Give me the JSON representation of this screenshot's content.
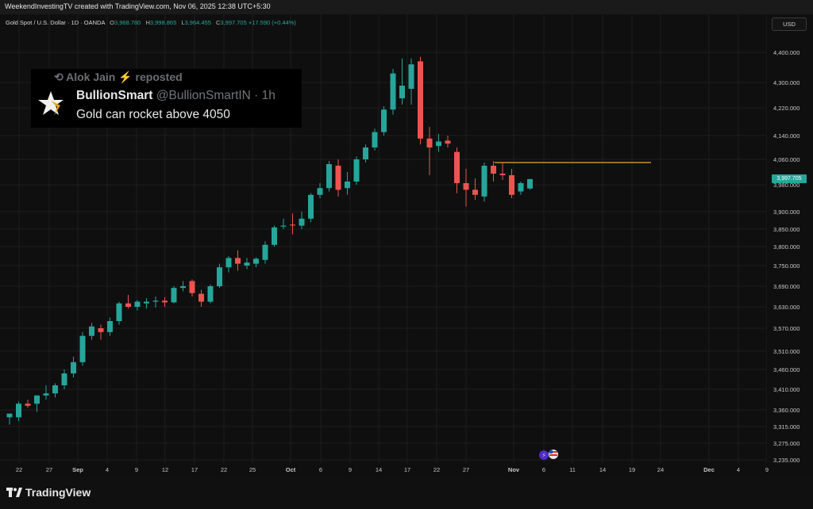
{
  "header": {
    "caption": "WeekendInvestingTV created with TradingView.com, Nov 06, 2025 12:38 UTC+5:30"
  },
  "legend": {
    "symbol": "Gold Spot / U.S. Dollar · 1D · OANDA",
    "o_label": "O",
    "o_value": "3,968.780",
    "h_label": "H",
    "h_value": "3,998.865",
    "l_label": "L",
    "l_value": "3,964.455",
    "c_label": "C",
    "c_value": "3,997.705",
    "change": "+17.590 (+0.44%)"
  },
  "currency_button": "USD",
  "last_price_label": "3,997.705",
  "tweet": {
    "repost_text": "Alok Jain ⚡ reposted",
    "author": "BullionSmart",
    "handle": "@BullionSmartIN · 1h",
    "text": "Gold can rocket above 4050"
  },
  "footer": {
    "brand": "TradingView"
  },
  "colors": {
    "up": "#26a69a",
    "down": "#ef5350",
    "background": "#0f0f0f",
    "level_line": "#f5a623"
  },
  "chart_data": {
    "type": "candlestick",
    "symbol": "XAUUSD",
    "y_ticks": [
      "4,400.000",
      "4,300.000",
      "4,220.000",
      "4,140.000",
      "4,060.000",
      "3,980.000",
      "3,900.000",
      "3,850.000",
      "3,800.000",
      "3,750.000",
      "3,690.000",
      "3,630.000",
      "3,570.000",
      "3,510.000",
      "3,460.000",
      "3,410.000",
      "3,360.000",
      "3,315.000",
      "3,275.000",
      "3,235.000"
    ],
    "x_ticks": [
      "22",
      "27",
      "Sep",
      "4",
      "9",
      "12",
      "17",
      "22",
      "25",
      "Oct",
      "6",
      "9",
      "14",
      "17",
      "22",
      "27",
      "Nov",
      "6",
      "11",
      "14",
      "19",
      "24",
      "Dec",
      "4",
      "9"
    ],
    "horizontal_level": 4050,
    "candles": [
      {
        "o": 3340,
        "h": 3350,
        "l": 3320,
        "c": 3350
      },
      {
        "o": 3340,
        "h": 3380,
        "l": 3330,
        "c": 3375
      },
      {
        "o": 3375,
        "h": 3385,
        "l": 3365,
        "c": 3370
      },
      {
        "o": 3375,
        "h": 3395,
        "l": 3355,
        "c": 3395
      },
      {
        "o": 3395,
        "h": 3420,
        "l": 3385,
        "c": 3400
      },
      {
        "o": 3400,
        "h": 3425,
        "l": 3390,
        "c": 3420
      },
      {
        "o": 3420,
        "h": 3460,
        "l": 3410,
        "c": 3450
      },
      {
        "o": 3450,
        "h": 3495,
        "l": 3440,
        "c": 3480
      },
      {
        "o": 3480,
        "h": 3560,
        "l": 3470,
        "c": 3550
      },
      {
        "o": 3550,
        "h": 3585,
        "l": 3540,
        "c": 3575
      },
      {
        "o": 3570,
        "h": 3580,
        "l": 3540,
        "c": 3560
      },
      {
        "o": 3560,
        "h": 3600,
        "l": 3550,
        "c": 3590
      },
      {
        "o": 3590,
        "h": 3645,
        "l": 3580,
        "c": 3640
      },
      {
        "o": 3640,
        "h": 3665,
        "l": 3625,
        "c": 3630
      },
      {
        "o": 3630,
        "h": 3650,
        "l": 3620,
        "c": 3645
      },
      {
        "o": 3640,
        "h": 3655,
        "l": 3625,
        "c": 3645
      },
      {
        "o": 3645,
        "h": 3660,
        "l": 3628,
        "c": 3648
      },
      {
        "o": 3648,
        "h": 3658,
        "l": 3630,
        "c": 3643
      },
      {
        "o": 3643,
        "h": 3690,
        "l": 3640,
        "c": 3685
      },
      {
        "o": 3685,
        "h": 3705,
        "l": 3675,
        "c": 3690
      },
      {
        "o": 3705,
        "h": 3710,
        "l": 3660,
        "c": 3670
      },
      {
        "o": 3668,
        "h": 3680,
        "l": 3630,
        "c": 3645
      },
      {
        "o": 3645,
        "h": 3695,
        "l": 3640,
        "c": 3690
      },
      {
        "o": 3690,
        "h": 3755,
        "l": 3685,
        "c": 3745
      },
      {
        "o": 3745,
        "h": 3775,
        "l": 3730,
        "c": 3770
      },
      {
        "o": 3770,
        "h": 3790,
        "l": 3735,
        "c": 3755
      },
      {
        "o": 3750,
        "h": 3770,
        "l": 3740,
        "c": 3758
      },
      {
        "o": 3755,
        "h": 3772,
        "l": 3745,
        "c": 3768
      },
      {
        "o": 3765,
        "h": 3815,
        "l": 3755,
        "c": 3805
      },
      {
        "o": 3805,
        "h": 3860,
        "l": 3800,
        "c": 3855
      },
      {
        "o": 3860,
        "h": 3880,
        "l": 3850,
        "c": 3860
      },
      {
        "o": 3863,
        "h": 3895,
        "l": 3835,
        "c": 3862
      },
      {
        "o": 3860,
        "h": 3900,
        "l": 3850,
        "c": 3880
      },
      {
        "o": 3880,
        "h": 3955,
        "l": 3870,
        "c": 3950
      },
      {
        "o": 3950,
        "h": 3985,
        "l": 3940,
        "c": 3970
      },
      {
        "o": 3970,
        "h": 4055,
        "l": 3960,
        "c": 4045
      },
      {
        "o": 4040,
        "h": 4060,
        "l": 3945,
        "c": 3965
      },
      {
        "o": 3970,
        "h": 4020,
        "l": 3950,
        "c": 3990
      },
      {
        "o": 3990,
        "h": 4070,
        "l": 3980,
        "c": 4060
      },
      {
        "o": 4060,
        "h": 4110,
        "l": 4050,
        "c": 4100
      },
      {
        "o": 4100,
        "h": 4160,
        "l": 4090,
        "c": 4150
      },
      {
        "o": 4150,
        "h": 4225,
        "l": 4140,
        "c": 4215
      },
      {
        "o": 4215,
        "h": 4345,
        "l": 4200,
        "c": 4330
      },
      {
        "o": 4250,
        "h": 4380,
        "l": 4230,
        "c": 4290
      },
      {
        "o": 4280,
        "h": 4380,
        "l": 4230,
        "c": 4360
      },
      {
        "o": 4370,
        "h": 4385,
        "l": 4110,
        "c": 4130
      },
      {
        "o": 4130,
        "h": 4165,
        "l": 4010,
        "c": 4100
      },
      {
        "o": 4105,
        "h": 4145,
        "l": 4085,
        "c": 4120
      },
      {
        "o": 4123,
        "h": 4140,
        "l": 4100,
        "c": 4113
      },
      {
        "o": 4085,
        "h": 4100,
        "l": 3955,
        "c": 3985
      },
      {
        "o": 3985,
        "h": 4030,
        "l": 3915,
        "c": 3965
      },
      {
        "o": 3965,
        "h": 4000,
        "l": 3935,
        "c": 3950
      },
      {
        "o": 3945,
        "h": 4050,
        "l": 3930,
        "c": 4040
      },
      {
        "o": 4040,
        "h": 4055,
        "l": 3990,
        "c": 4015
      },
      {
        "o": 4015,
        "h": 4050,
        "l": 3995,
        "c": 4010
      },
      {
        "o": 4010,
        "h": 4030,
        "l": 3940,
        "c": 3950
      },
      {
        "o": 3960,
        "h": 3990,
        "l": 3950,
        "c": 3985
      },
      {
        "o": 3968.78,
        "h": 3998.865,
        "l": 3964.455,
        "c": 3997.705
      }
    ]
  }
}
